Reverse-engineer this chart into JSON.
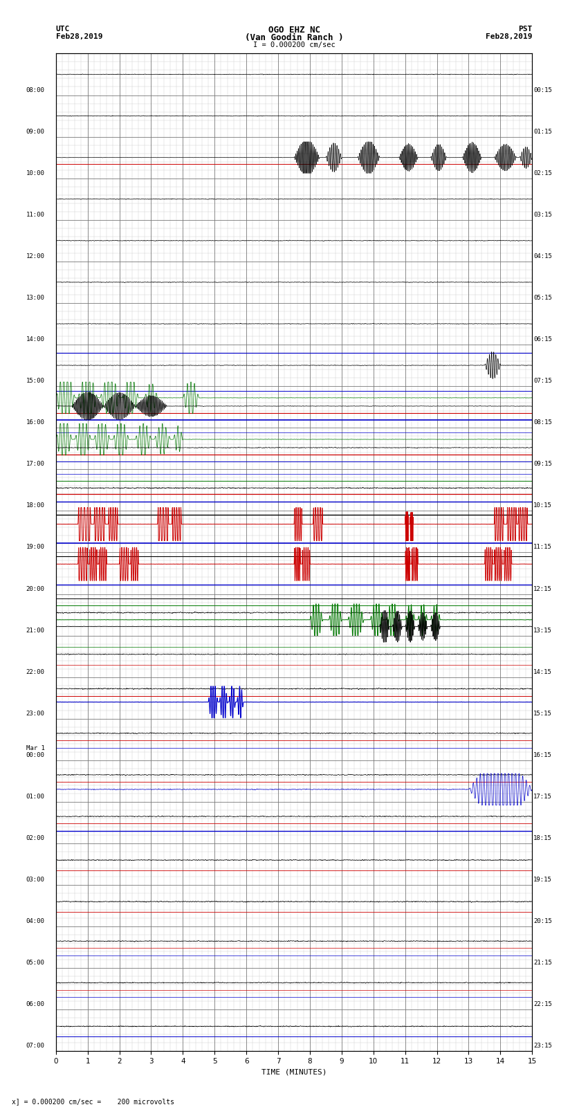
{
  "title_line1": "OGO EHZ NC",
  "title_line2": "(Van Goodin Ranch )",
  "title_line3": "I = 0.000200 cm/sec",
  "utc_label": "UTC",
  "utc_date": "Feb28,2019",
  "pst_label": "PST",
  "pst_date": "Feb28,2019",
  "xlabel": "TIME (MINUTES)",
  "footer": "x] = 0.000200 cm/sec =    200 microvolts",
  "xlim": [
    0,
    15
  ],
  "xticks": [
    0,
    1,
    2,
    3,
    4,
    5,
    6,
    7,
    8,
    9,
    10,
    11,
    12,
    13,
    14,
    15
  ],
  "num_rows": 24,
  "left_times": [
    "08:00",
    "09:00",
    "10:00",
    "11:00",
    "12:00",
    "13:00",
    "14:00",
    "15:00",
    "16:00",
    "17:00",
    "18:00",
    "19:00",
    "20:00",
    "21:00",
    "22:00",
    "23:00",
    "Mar 1\n00:00",
    "01:00",
    "02:00",
    "03:00",
    "04:00",
    "05:00",
    "06:00",
    "07:00"
  ],
  "right_times": [
    "00:15",
    "01:15",
    "02:15",
    "03:15",
    "04:15",
    "05:15",
    "06:15",
    "07:15",
    "08:15",
    "09:15",
    "10:15",
    "11:15",
    "12:15",
    "13:15",
    "14:15",
    "15:15",
    "16:15",
    "17:15",
    "18:15",
    "19:15",
    "20:15",
    "21:15",
    "22:15",
    "23:15"
  ],
  "bg_color": "#ffffff",
  "trace_color_black": "#000000",
  "trace_color_red": "#cc0000",
  "trace_color_blue": "#0000cc",
  "trace_color_green": "#007700",
  "figwidth": 8.5,
  "figheight": 16.13,
  "dpi": 100
}
